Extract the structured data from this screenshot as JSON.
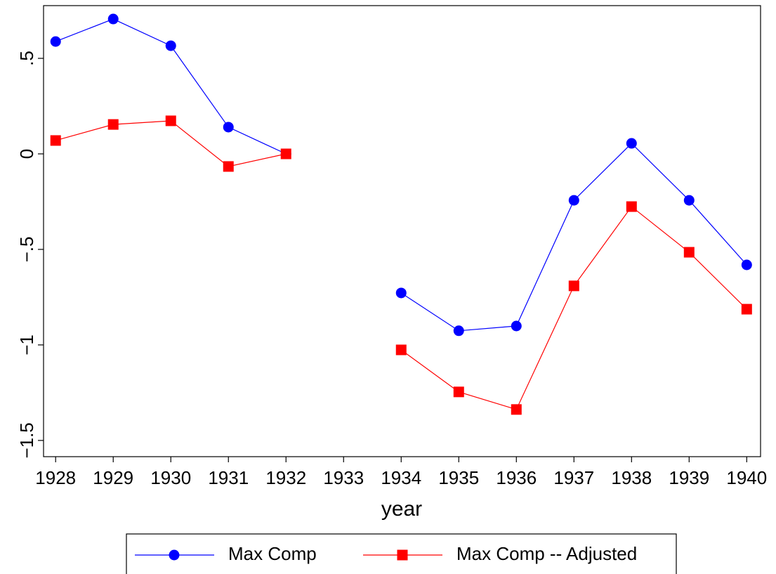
{
  "chart_data": {
    "type": "line",
    "x": [
      1928,
      1929,
      1930,
      1931,
      1932,
      1933,
      1934,
      1935,
      1936,
      1937,
      1938,
      1939,
      1940
    ],
    "series": [
      {
        "name": "Max Comp",
        "color": "#0000ff",
        "marker": "circle",
        "values": [
          0.588,
          0.706,
          0.566,
          0.14,
          0,
          null,
          -0.728,
          -0.926,
          -0.901,
          -0.243,
          0.055,
          -0.243,
          -0.581
        ]
      },
      {
        "name": "Max Comp -- Adjusted",
        "color": "#ff0000",
        "marker": "square",
        "values": [
          0.07,
          0.154,
          0.173,
          -0.066,
          0,
          null,
          -1.026,
          -1.246,
          -1.338,
          -0.691,
          -0.276,
          -0.515,
          -0.813
        ]
      }
    ],
    "xlabel": "year",
    "xlim": [
      1927.79,
      1940.24
    ],
    "xticks": [
      1928,
      1929,
      1930,
      1931,
      1932,
      1933,
      1934,
      1935,
      1936,
      1937,
      1938,
      1939,
      1940
    ],
    "ylim": [
      -1.585,
      0.776
    ],
    "yticks": [
      {
        "value": -1.5,
        "label": "−1.5"
      },
      {
        "value": -1,
        "label": "−1"
      },
      {
        "value": -0.5,
        "label": "−.5"
      },
      0,
      {
        "value": 0.5,
        "label": ".5"
      }
    ],
    "legend": "bottom"
  }
}
